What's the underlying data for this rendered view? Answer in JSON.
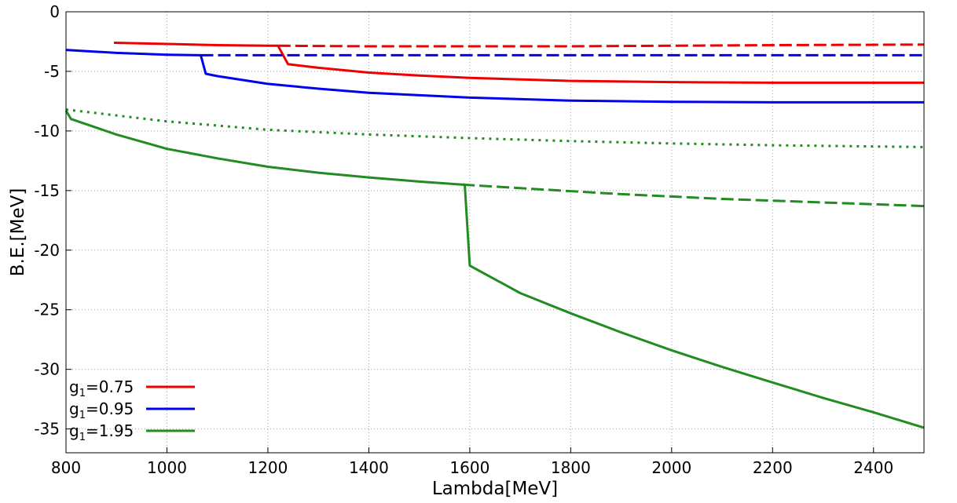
{
  "chart_data": {
    "type": "line",
    "title": "",
    "xlabel": "Lambda[MeV]",
    "ylabel": "B.E.[MeV]",
    "xlim": [
      800,
      2500
    ],
    "ylim": [
      -37,
      0
    ],
    "x_ticks": [
      800,
      1000,
      1200,
      1400,
      1600,
      1800,
      2000,
      2200,
      2400
    ],
    "y_ticks": [
      0,
      -5,
      -10,
      -15,
      -20,
      -25,
      -30,
      -35
    ],
    "x_tick_labels": [
      "800",
      "1000",
      "1200",
      "1400",
      "1600",
      "1800",
      "2000",
      "2200",
      "2400"
    ],
    "y_tick_labels": [
      "0",
      "-5",
      "-10",
      "-15",
      "-20",
      "-25",
      "-30",
      "-35"
    ],
    "grid": true,
    "legend_position": "bottom-left",
    "legend": [
      {
        "base": "g",
        "sub": "1",
        "rest": "=0.75",
        "color": "#ee0000"
      },
      {
        "base": "g",
        "sub": "1",
        "rest": "=0.95",
        "color": "#0000ee"
      },
      {
        "base": "g",
        "sub": "1",
        "rest": "=1.95",
        "color": "#228b22"
      }
    ],
    "series": [
      {
        "color": "#ee0000",
        "style": "solid",
        "x": [
          895,
          1000,
          1100,
          1200,
          1220,
          1240,
          1300,
          1400,
          1500,
          1600,
          1800,
          2000,
          2200,
          2500
        ],
        "y": [
          -2.6,
          -2.7,
          -2.8,
          -2.85,
          -2.85,
          -4.4,
          -4.7,
          -5.1,
          -5.35,
          -5.55,
          -5.8,
          -5.9,
          -5.95,
          -5.95
        ]
      },
      {
        "color": "#ee0000",
        "style": "dashed",
        "x": [
          1220,
          1400,
          1600,
          1800,
          2000,
          2200,
          2500
        ],
        "y": [
          -2.85,
          -2.9,
          -2.9,
          -2.9,
          -2.85,
          -2.8,
          -2.75
        ]
      },
      {
        "color": "#0000ee",
        "style": "solid",
        "x": [
          800,
          900,
          1000,
          1067,
          1077,
          1100,
          1200,
          1300,
          1400,
          1600,
          1800,
          2000,
          2200,
          2500
        ],
        "y": [
          -3.2,
          -3.45,
          -3.6,
          -3.65,
          -5.2,
          -5.4,
          -6.05,
          -6.45,
          -6.8,
          -7.2,
          -7.45,
          -7.55,
          -7.6,
          -7.6
        ]
      },
      {
        "color": "#0000ee",
        "style": "dashed",
        "x": [
          1067,
          1200,
          1400,
          1600,
          1800,
          2000,
          2200,
          2500
        ],
        "y": [
          -3.65,
          -3.65,
          -3.65,
          -3.65,
          -3.65,
          -3.65,
          -3.65,
          -3.65
        ]
      },
      {
        "color": "#228b22",
        "style": "dotted",
        "x": [
          800,
          900,
          1000,
          1200,
          1400,
          1600,
          1800,
          2000,
          2200,
          2500
        ],
        "y": [
          -8.2,
          -8.7,
          -9.2,
          -9.9,
          -10.3,
          -10.6,
          -10.85,
          -11.05,
          -11.2,
          -11.35
        ]
      },
      {
        "color": "#228b22",
        "style": "solid",
        "x": [
          800,
          810,
          900,
          1000,
          1100,
          1200,
          1300,
          1400,
          1500,
          1585,
          1590,
          1600,
          1700,
          1800,
          1900,
          2000,
          2100,
          2200,
          2300,
          2400,
          2500
        ],
        "y": [
          -8.3,
          -9.0,
          -10.3,
          -11.5,
          -12.3,
          -13.0,
          -13.5,
          -13.9,
          -14.25,
          -14.5,
          -14.5,
          -21.3,
          -23.6,
          -25.3,
          -26.9,
          -28.4,
          -29.8,
          -31.1,
          -32.4,
          -33.6,
          -34.9
        ]
      },
      {
        "color": "#228b22",
        "style": "dashed",
        "x": [
          1585,
          1700,
          1800,
          1900,
          2000,
          2100,
          2200,
          2300,
          2400,
          2500
        ],
        "y": [
          -14.5,
          -14.8,
          -15.05,
          -15.3,
          -15.5,
          -15.7,
          -15.85,
          -16.0,
          -16.15,
          -16.3
        ]
      }
    ]
  }
}
